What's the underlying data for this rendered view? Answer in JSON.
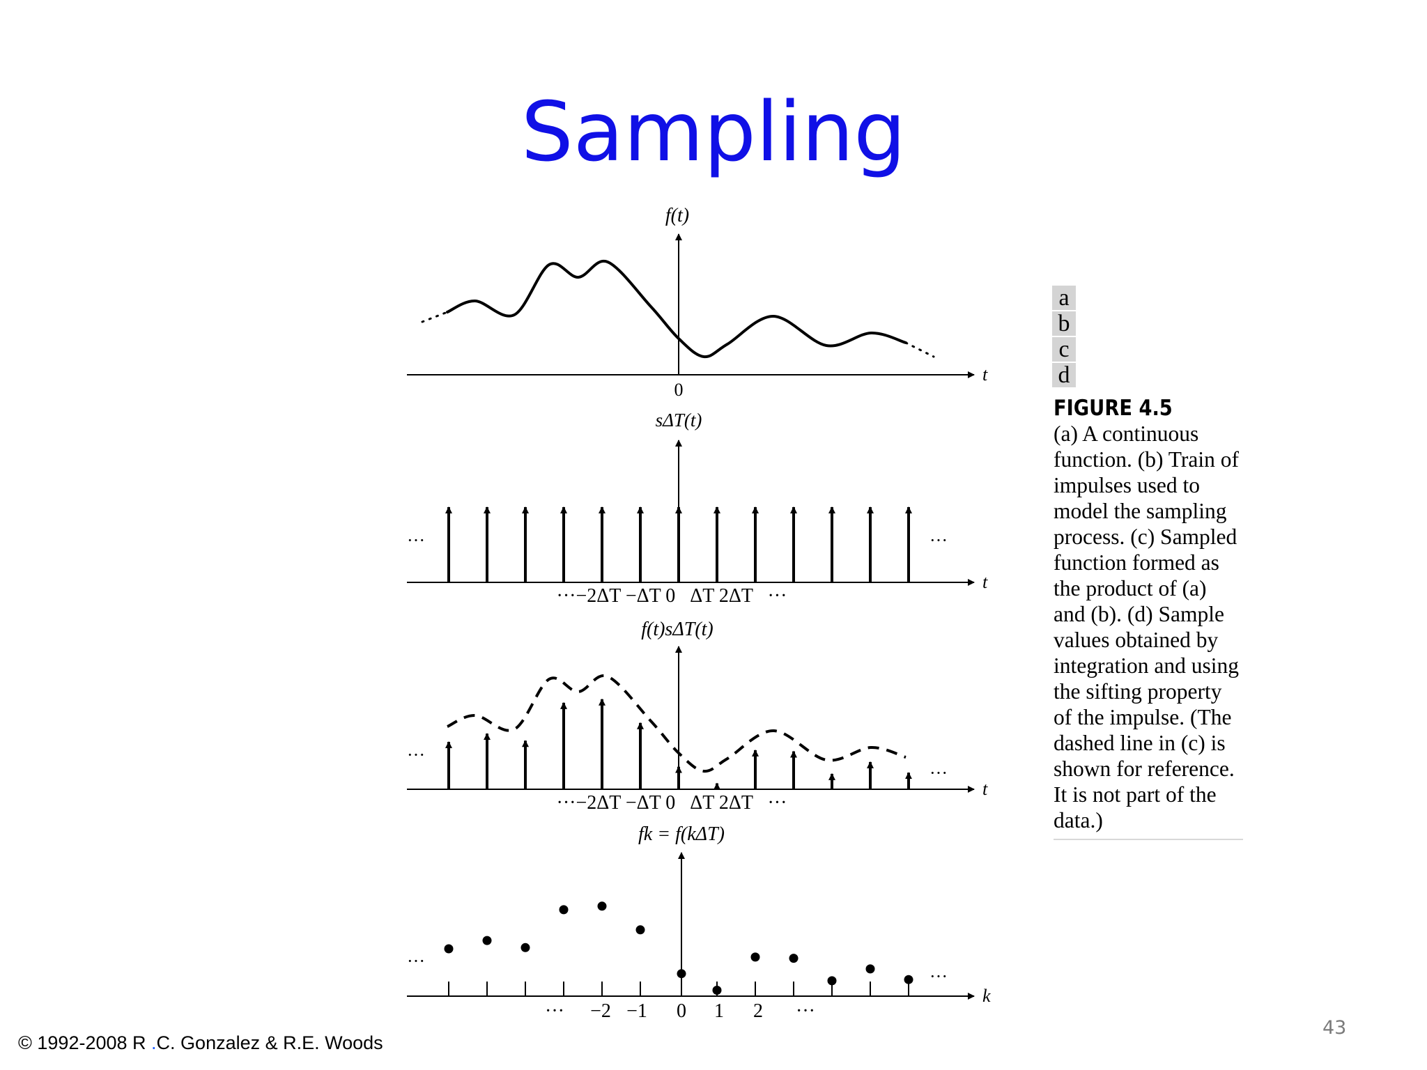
{
  "slide": {
    "title": "Sampling",
    "copyright_prefix": "© 1992-2008 R ",
    "copyright_dot": ".",
    "copyright_suffix": "C. Gonzalez & R.E. Woods",
    "page_number": "43"
  },
  "figure": {
    "panel_labels": [
      "a",
      "b",
      "c",
      "d"
    ],
    "title": "FIGURE 4.5",
    "caption": "(a) A continuous function. (b) Train of impulses used to model the sampling process. (c) Sampled function formed as the product of (a) and (b). (d) Sample values obtained by integration and using the sifting property of the impulse. (The dashed line in (c) is shown for reference. It is not part of the data.)"
  },
  "panels": {
    "a": {
      "y_label": "f(t)",
      "x_label": "t",
      "origin_label": "0"
    },
    "b": {
      "y_label": "sΔT(t)",
      "x_label": "t",
      "tick_labels": "···−2ΔT −ΔT 0   ΔT 2ΔT   ···",
      "ellipsis": "···"
    },
    "c": {
      "y_label": "f(t)sΔT(t)",
      "x_label": "t",
      "tick_labels": "···−2ΔT −ΔT 0   ΔT 2ΔT   ···",
      "ellipsis": "···"
    },
    "d": {
      "y_label": "fk = f(kΔT)",
      "x_label": "k",
      "tick_labels": [
        "···",
        "−2",
        "−1",
        "0",
        "1",
        "2",
        "···"
      ],
      "ellipsis": "···"
    }
  },
  "chart_data": {
    "type": "scatter",
    "x_label": "k",
    "y_label": "fk = f(kΔT)",
    "k": [
      -6,
      -5,
      -4,
      -3,
      -2,
      -1,
      0,
      1,
      2,
      3,
      4,
      5,
      6
    ],
    "values": [
      0.4,
      0.47,
      0.41,
      0.73,
      0.76,
      0.56,
      0.19,
      0.05,
      0.33,
      0.32,
      0.13,
      0.23,
      0.14
    ]
  }
}
